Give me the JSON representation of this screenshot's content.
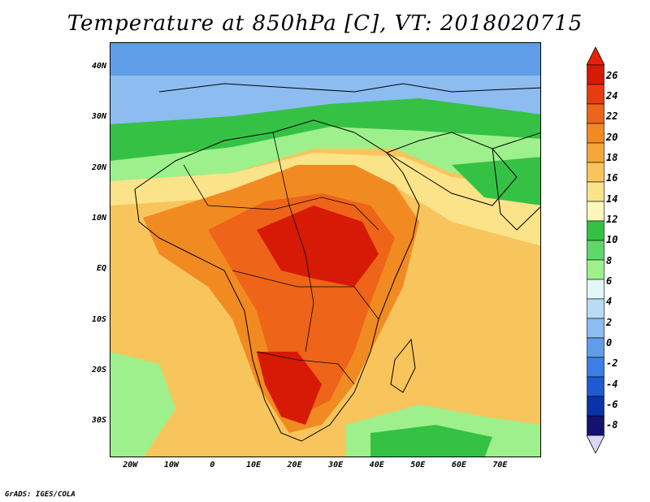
{
  "title": "Temperature at 850hPa [C], VT: 2018020715",
  "credit": "GrADS: IGES/COLA",
  "map": {
    "lon_range": [
      -25,
      80
    ],
    "lat_range": [
      -37,
      45
    ],
    "lat_labels": [
      {
        "lat": 40,
        "text": "40N"
      },
      {
        "lat": 30,
        "text": "30N"
      },
      {
        "lat": 20,
        "text": "20N"
      },
      {
        "lat": 10,
        "text": "10N"
      },
      {
        "lat": 0,
        "text": "EQ"
      },
      {
        "lat": -10,
        "text": "10S"
      },
      {
        "lat": -20,
        "text": "20S"
      },
      {
        "lat": -30,
        "text": "30S"
      }
    ],
    "lon_labels": [
      {
        "lon": -20,
        "text": "20W"
      },
      {
        "lon": -10,
        "text": "10W"
      },
      {
        "lon": 0,
        "text": "0"
      },
      {
        "lon": 10,
        "text": "10E"
      },
      {
        "lon": 20,
        "text": "20E"
      },
      {
        "lon": 30,
        "text": "30E"
      },
      {
        "lon": 40,
        "text": "40E"
      },
      {
        "lon": 50,
        "text": "50E"
      },
      {
        "lon": 60,
        "text": "60E"
      },
      {
        "lon": 70,
        "text": "70E"
      }
    ]
  },
  "colorbar": {
    "labels": [
      "26",
      "24",
      "22",
      "20",
      "18",
      "16",
      "14",
      "12",
      "10",
      "8",
      "6",
      "4",
      "2",
      "0",
      "-2",
      "-4",
      "-6",
      "-8"
    ],
    "over_color": "#e8220a",
    "under_color": "#dcd6f5",
    "colors": [
      "#14126e",
      "#0a33a8",
      "#1f5ad0",
      "#3c7fe6",
      "#5f9de8",
      "#8cbcf0",
      "#b8dcf4",
      "#e3f7f8",
      "#9ef08c",
      "#5fd86a",
      "#35c244",
      "#fdf7b9",
      "#fbe38a",
      "#f8c55c",
      "#f5a63a",
      "#f28a22",
      "#ee6418",
      "#e63c10",
      "#d61a05"
    ]
  }
}
